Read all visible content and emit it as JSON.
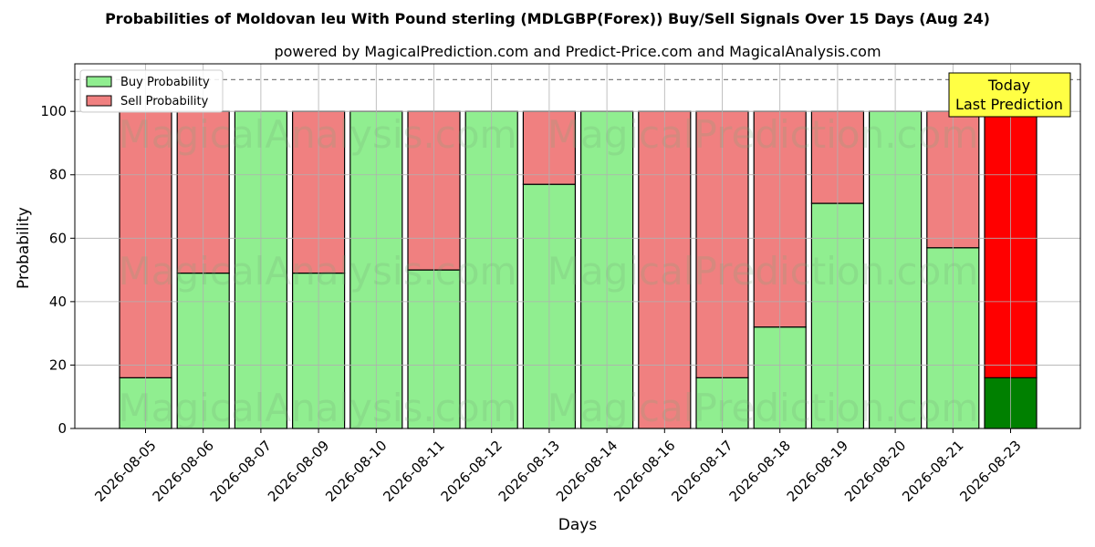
{
  "chart_data": {
    "type": "bar",
    "stacked": true,
    "title": "Probabilities of Moldovan leu With Pound sterling (MDLGBP(Forex)) Buy/Sell Signals Over 15 Days (Aug 24)",
    "subtitle": "powered by MagicalPrediction.com and Predict-Price.com and MagicalAnalysis.com",
    "xlabel": "Days",
    "ylabel": "Probability",
    "ylim": [
      0,
      115
    ],
    "yticks": [
      0,
      20,
      40,
      60,
      80,
      100
    ],
    "grid": true,
    "legend_position": "top-left",
    "reference_line": 110,
    "categories": [
      "2026-08-05",
      "2026-08-06",
      "2026-08-07",
      "2026-08-09",
      "2026-08-10",
      "2026-08-11",
      "2026-08-12",
      "2026-08-13",
      "2026-08-14",
      "2026-08-16",
      "2026-08-17",
      "2026-08-18",
      "2026-08-19",
      "2026-08-20",
      "2026-08-21",
      "2026-08-23"
    ],
    "series": [
      {
        "name": "Buy Probability",
        "color": "#90ee90",
        "values": [
          16,
          49,
          100,
          49,
          100,
          50,
          100,
          77,
          100,
          0,
          16,
          32,
          71,
          100,
          57,
          16
        ]
      },
      {
        "name": "Sell Probability",
        "color": "#f08080",
        "values": [
          84,
          51,
          0,
          51,
          0,
          50,
          0,
          23,
          0,
          100,
          84,
          68,
          29,
          0,
          43,
          84
        ]
      }
    ],
    "highlight": {
      "index": 15,
      "buy_color": "#008000",
      "sell_color": "#ff0000"
    },
    "annotation": {
      "lines": [
        "Today",
        "Last Prediction"
      ],
      "background": "#ffff44"
    },
    "watermarks": [
      "MagicalAnalysis.com",
      "MagicalPrediction.com"
    ]
  }
}
